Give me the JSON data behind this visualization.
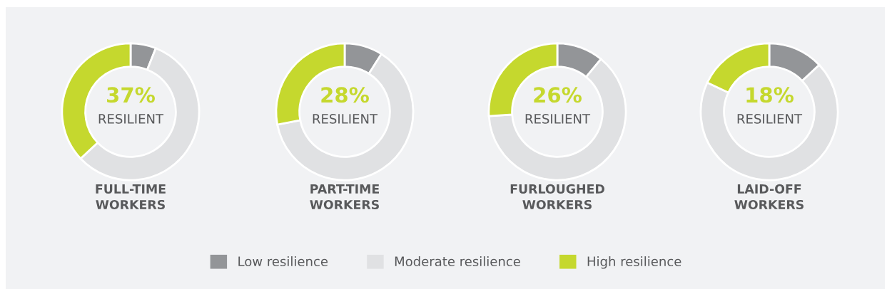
{
  "chart_data": [
    {
      "type": "donut",
      "title": "FULL-TIME\nWORKERS",
      "categories": [
        "Low resilience",
        "Moderate resilience",
        "High resilience"
      ],
      "values": [
        6,
        57,
        37
      ],
      "colors": [
        "#939598",
        "#e0e1e3",
        "#c5d82e"
      ],
      "value_labels": [
        null,
        null,
        "37%"
      ],
      "annotations": [
        "RESILIENT"
      ],
      "legend": "bottom"
    },
    {
      "type": "donut",
      "title": "PART-TIME\nWORKERS",
      "categories": [
        null,
        null,
        null
      ],
      "values": [
        9,
        63,
        28
      ],
      "colors": [
        "#939598",
        "#e0e1e3",
        "#c5d82e"
      ],
      "value_labels": [
        null,
        null,
        "28%"
      ],
      "annotations": [
        "RESILIENT"
      ]
    },
    {
      "type": "donut",
      "title": "FURLOUGHED\nWORKERS",
      "categories": [
        null,
        null,
        null
      ],
      "values": [
        11,
        63,
        26
      ],
      "colors": [
        "#939598",
        "#e0e1e3",
        "#c5d82e"
      ],
      "value_labels": [
        null,
        null,
        "26%"
      ],
      "annotations": [
        "RESILIENT"
      ]
    },
    {
      "type": "donut",
      "title": "LAID-OFF\nWORKERS",
      "categories": [
        null,
        null,
        null
      ],
      "values": [
        13,
        69,
        18
      ],
      "colors": [
        "#939598",
        "#e0e1e3",
        "#c5d82e"
      ],
      "value_labels": [
        null,
        null,
        "18%"
      ],
      "annotations": [
        "RESILIENT"
      ]
    }
  ]
}
